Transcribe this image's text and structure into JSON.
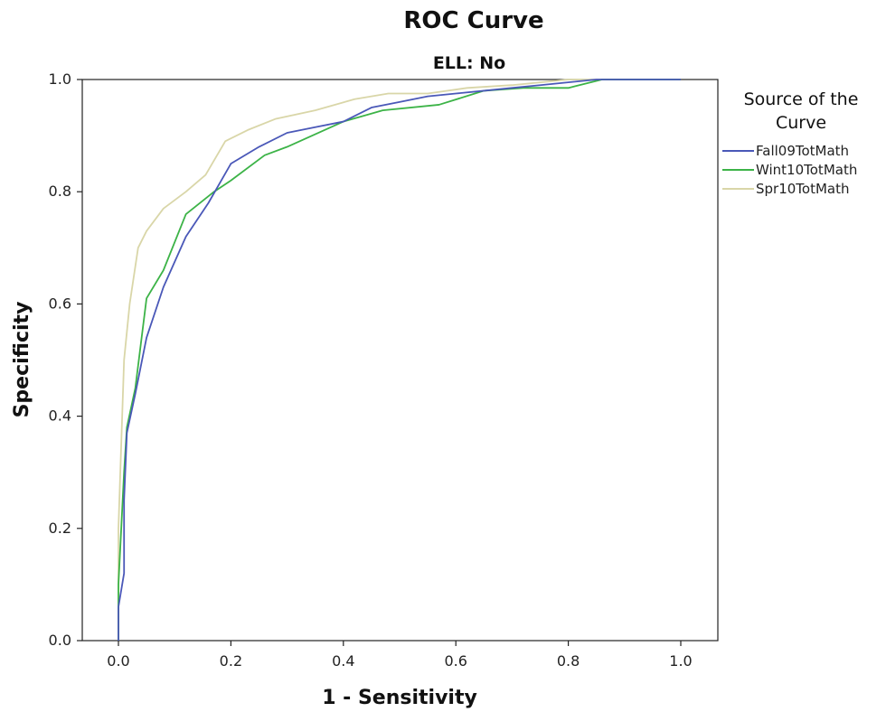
{
  "chart_data": {
    "type": "line",
    "title": "ROC Curve",
    "subtitle": "ELL: No",
    "xlabel": "1 - Sensitivity",
    "ylabel": "Specificity",
    "xlim": [
      0.0,
      1.0
    ],
    "ylim": [
      0.0,
      1.0
    ],
    "xticks": [
      "0.0",
      "0.2",
      "0.4",
      "0.6",
      "0.8",
      "1.0"
    ],
    "yticks": [
      "0.0",
      "0.2",
      "0.4",
      "0.6",
      "0.8",
      "1.0"
    ],
    "grid": false,
    "legend": {
      "title_lines": [
        "Source of the",
        "Curve"
      ],
      "placement": "right"
    },
    "series": [
      {
        "name": "Fall09TotMath",
        "color": "#4a58b8",
        "x": [
          0.0,
          0.0,
          0.01,
          0.01,
          0.015,
          0.03,
          0.05,
          0.08,
          0.12,
          0.16,
          0.2,
          0.25,
          0.3,
          0.35,
          0.4,
          0.45,
          0.5,
          0.55,
          0.6,
          0.65,
          0.7,
          0.75,
          0.8,
          0.85,
          0.9,
          0.95,
          1.0
        ],
        "y": [
          0.0,
          0.06,
          0.12,
          0.25,
          0.37,
          0.44,
          0.54,
          0.63,
          0.72,
          0.78,
          0.85,
          0.88,
          0.905,
          0.915,
          0.925,
          0.95,
          0.96,
          0.97,
          0.975,
          0.98,
          0.985,
          0.99,
          0.995,
          1.0,
          1.0,
          1.0,
          1.0
        ]
      },
      {
        "name": "Wint10TotMath",
        "color": "#3cb347",
        "x": [
          0.0,
          0.0,
          0.01,
          0.015,
          0.03,
          0.05,
          0.08,
          0.12,
          0.17,
          0.2,
          0.26,
          0.3,
          0.4,
          0.47,
          0.57,
          0.65,
          0.72,
          0.8,
          0.86,
          0.9,
          1.0
        ],
        "y": [
          0.0,
          0.1,
          0.3,
          0.38,
          0.45,
          0.61,
          0.66,
          0.76,
          0.8,
          0.82,
          0.865,
          0.88,
          0.925,
          0.945,
          0.955,
          0.98,
          0.985,
          0.985,
          1.0,
          1.0,
          1.0
        ]
      },
      {
        "name": "Spr10TotMath",
        "color": "#d9d6a8",
        "x": [
          0.0,
          0.0,
          0.005,
          0.01,
          0.02,
          0.035,
          0.05,
          0.08,
          0.12,
          0.155,
          0.19,
          0.23,
          0.28,
          0.35,
          0.42,
          0.48,
          0.55,
          0.62,
          0.7,
          0.8,
          0.9,
          1.0
        ],
        "y": [
          0.0,
          0.2,
          0.35,
          0.5,
          0.6,
          0.7,
          0.73,
          0.77,
          0.8,
          0.83,
          0.89,
          0.91,
          0.93,
          0.945,
          0.965,
          0.975,
          0.975,
          0.985,
          0.99,
          1.0,
          1.0,
          1.0
        ]
      }
    ]
  }
}
